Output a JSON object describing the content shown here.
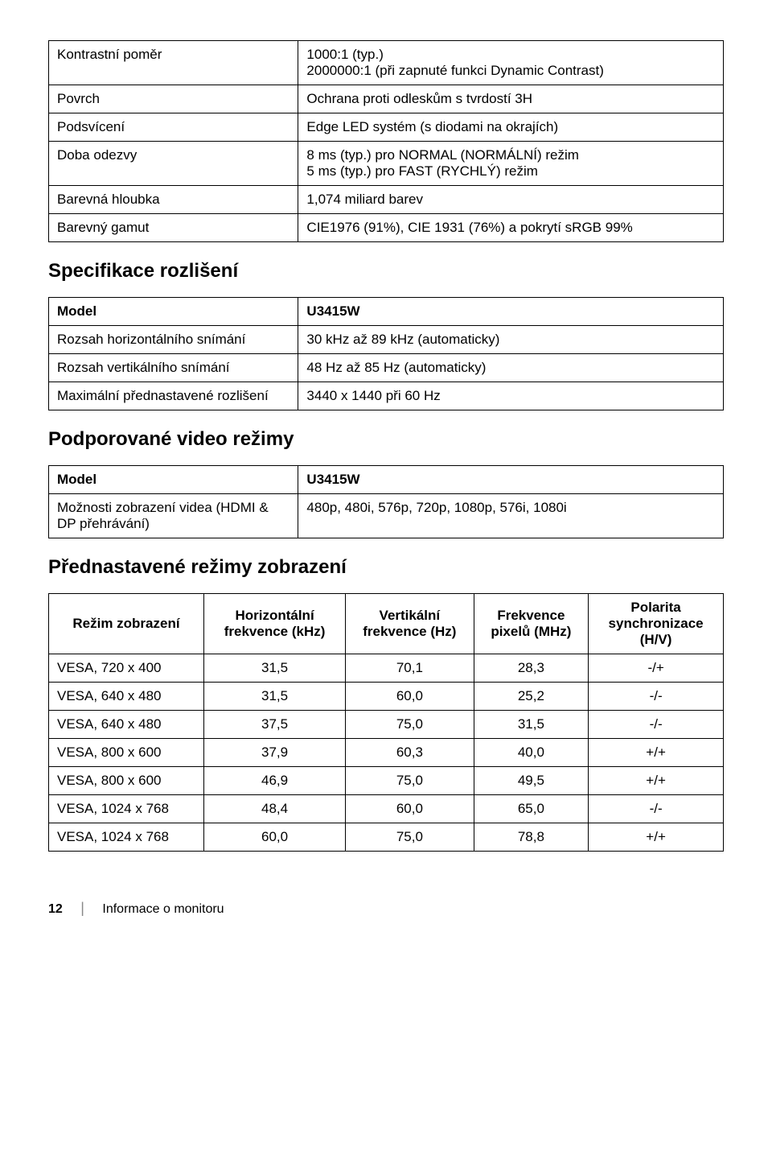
{
  "specs_top": [
    {
      "label": "Kontrastní poměr",
      "value": "1000:1 (typ.)\n2000000:1 (při zapnuté funkci Dynamic Contrast)"
    },
    {
      "label": "Povrch",
      "value": "Ochrana proti odleskům s tvrdostí 3H"
    },
    {
      "label": "Podsvícení",
      "value": "Edge LED systém (s diodami na okrajích)"
    },
    {
      "label": "Doba odezvy",
      "value": "8 ms (typ.) pro NORMAL (NORMÁLNÍ) režim\n5 ms (typ.) pro FAST (RYCHLÝ) režim"
    },
    {
      "label": "Barevná hloubka",
      "value": "1,074 miliard barev"
    },
    {
      "label": "Barevný gamut",
      "value": "CIE1976 (91%), CIE 1931 (76%) a pokrytí sRGB 99%"
    }
  ],
  "heading_res": "Specifikace rozlišení",
  "specs_res": [
    {
      "label": "Model",
      "value": "U3415W",
      "bold": true
    },
    {
      "label": "Rozsah horizontálního snímání",
      "value": "30 kHz až 89 kHz (automaticky)"
    },
    {
      "label": "Rozsah vertikálního snímání",
      "value": "48 Hz až 85 Hz (automaticky)"
    },
    {
      "label": "Maximální přednastavené rozlišení",
      "value": "3440 x 1440 při 60 Hz"
    }
  ],
  "heading_video": "Podporované video režimy",
  "specs_video": [
    {
      "label": "Model",
      "value": "U3415W",
      "bold": true
    },
    {
      "label": "Možnosti zobrazení videa (HDMI & DP přehrávání)",
      "value": "480p, 480i, 576p, 720p, 1080p, 576i, 1080i"
    }
  ],
  "heading_preset": "Přednastavené režimy zobrazení",
  "preset_headers": [
    "Režim zobrazení",
    "Horizontální frekvence (kHz)",
    "Vertikální frekvence (Hz)",
    "Frekvence pixelů (MHz)",
    "Polarita synchronizace (H/V)"
  ],
  "preset_rows": [
    [
      "VESA, 720 x 400",
      "31,5",
      "70,1",
      "28,3",
      "-/+"
    ],
    [
      "VESA, 640 x 480",
      "31,5",
      "60,0",
      "25,2",
      "-/-"
    ],
    [
      "VESA, 640 x 480",
      "37,5",
      "75,0",
      "31,5",
      "-/-"
    ],
    [
      "VESA, 800 x 600",
      "37,9",
      "60,3",
      "40,0",
      "+/+"
    ],
    [
      "VESA, 800 x 600",
      "46,9",
      "75,0",
      "49,5",
      "+/+"
    ],
    [
      "VESA, 1024 x 768",
      "48,4",
      "60,0",
      "65,0",
      "-/-"
    ],
    [
      "VESA, 1024 x 768",
      "60,0",
      "75,0",
      "78,8",
      "+/+"
    ]
  ],
  "footer": {
    "page": "12",
    "section": "Informace o monitoru"
  }
}
